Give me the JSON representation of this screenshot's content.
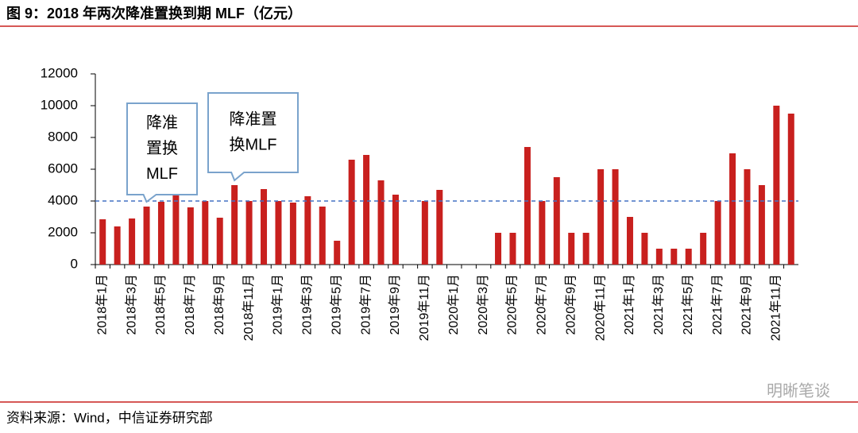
{
  "chart_data": {
    "type": "bar",
    "title": "图 9：2018 年两次降准置换到期 MLF（亿元）",
    "source": "资料来源：Wind，中信证券研究部",
    "watermark": "明晰笔谈",
    "categories": [
      "2018年1月",
      null,
      "2018年3月",
      null,
      "2018年5月",
      null,
      "2018年7月",
      null,
      "2018年9月",
      null,
      "2018年11月",
      null,
      "2019年1月",
      null,
      "2019年3月",
      null,
      "2019年5月",
      null,
      "2019年7月",
      null,
      "2019年9月",
      null,
      "2019年11月",
      null,
      "2020年1月",
      null,
      "2020年3月",
      null,
      "2020年5月",
      null,
      "2020年7月",
      null,
      "2020年9月",
      null,
      "2020年11月",
      null,
      "2021年1月",
      null,
      "2021年3月",
      null,
      "2021年5月",
      null,
      "2021年7月",
      null,
      "2021年9月",
      null,
      "2021年11月",
      null
    ],
    "values": [
      2850,
      2400,
      2900,
      3650,
      3950,
      4500,
      3600,
      4000,
      2950,
      5000,
      4000,
      4750,
      4000,
      3900,
      4300,
      3650,
      1500,
      6600,
      6900,
      5300,
      4400,
      null,
      4000,
      4700,
      null,
      null,
      null,
      2000,
      2000,
      7400,
      4000,
      5500,
      2000,
      2000,
      6000,
      6000,
      3000,
      2000,
      1000,
      1000,
      1000,
      2000,
      4000,
      7000,
      6000,
      5000,
      10000,
      9500
    ],
    "color": "#c8201e",
    "ylim": [
      0,
      12000
    ],
    "yticks": [
      0,
      2000,
      4000,
      6000,
      8000,
      10000,
      12000
    ],
    "reference_line": 4000,
    "reference_color": "#4472c4",
    "annotations": [
      {
        "lines": [
          "降准",
          "置换",
          "MLF"
        ],
        "category_index": 3
      },
      {
        "lines": [
          "降准置",
          "换MLF"
        ],
        "category_index": 9
      }
    ]
  }
}
